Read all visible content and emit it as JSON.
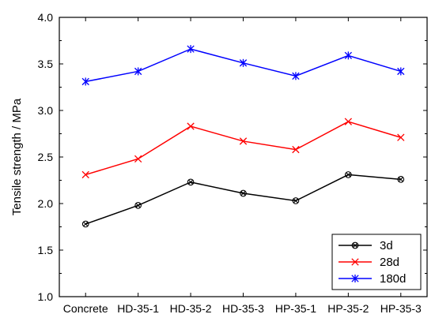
{
  "chart_data": {
    "type": "line",
    "title": "",
    "xlabel": "",
    "ylabel": "Tensile strength / MPa",
    "categories": [
      "Concrete",
      "HD-35-1",
      "HD-35-2",
      "HD-35-3",
      "HP-35-1",
      "HP-35-2",
      "HP-35-3"
    ],
    "ylim": [
      1.0,
      4.0
    ],
    "yticks": [
      "1.0",
      "1.5",
      "2.0",
      "2.5",
      "3.0",
      "3.5",
      "4.0"
    ],
    "grid": false,
    "legend_position": "bottom-right",
    "series": [
      {
        "name": "3d",
        "color": "#000000",
        "marker": "circle-x",
        "values": [
          1.78,
          1.98,
          2.23,
          2.11,
          2.03,
          2.31,
          2.26
        ]
      },
      {
        "name": "28d",
        "color": "#ff0000",
        "marker": "x",
        "values": [
          2.31,
          2.48,
          2.83,
          2.67,
          2.58,
          2.88,
          2.71
        ]
      },
      {
        "name": "180d",
        "color": "#0000ff",
        "marker": "star",
        "values": [
          3.31,
          3.42,
          3.66,
          3.51,
          3.37,
          3.59,
          3.42
        ]
      }
    ]
  }
}
